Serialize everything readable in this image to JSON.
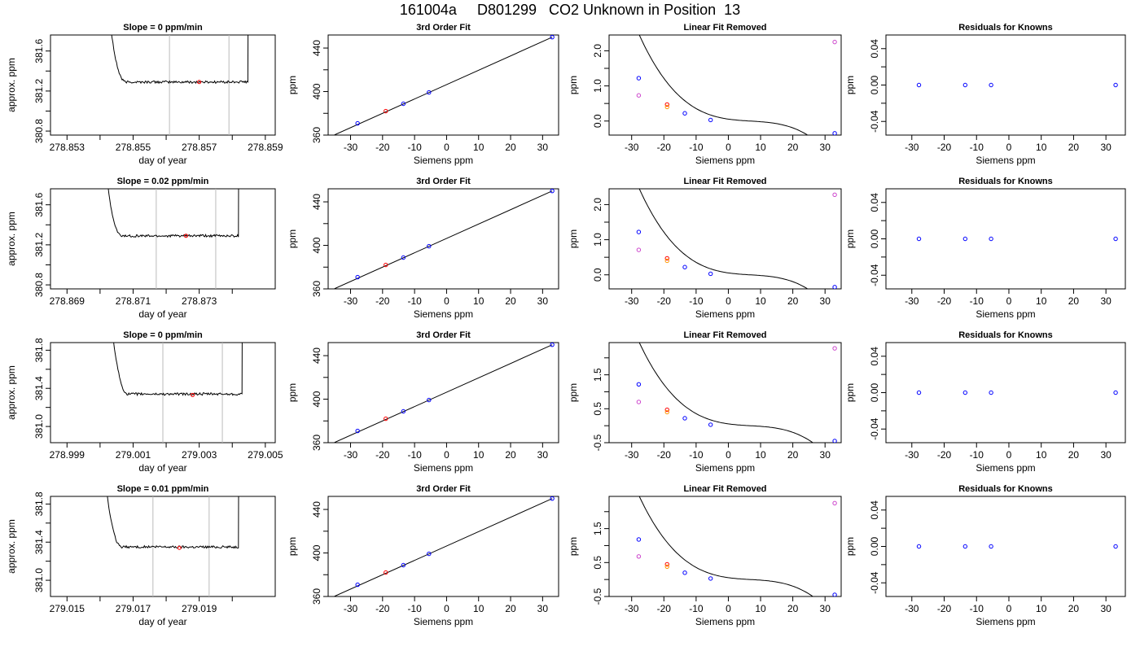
{
  "title": "161004a     D801299   CO2 Unknown in Position  13",
  "chart_data": [
    {
      "type": "line",
      "title": "Slope =  0  ppm/min",
      "xlabel": "day of year",
      "ylabel": "approx. ppm",
      "xlim": [
        278.8525,
        278.8593
      ],
      "ylim": [
        380.76,
        381.76
      ],
      "xticks": [
        278.853,
        278.854,
        278.855,
        278.856,
        278.857,
        278.858,
        278.859
      ],
      "xtick_labels": [
        "278.853",
        "",
        "278.855",
        "",
        "278.857",
        "",
        "278.859"
      ],
      "yticks": [
        380.8,
        381.0,
        381.2,
        381.4,
        381.6
      ],
      "ytick_labels": [
        "380.8",
        "",
        "381.2",
        "",
        "381.6"
      ],
      "vlines": [
        278.8561,
        278.8579
      ],
      "marker": {
        "x": 278.857,
        "y": 381.29,
        "color": "#ff0000"
      },
      "trace": {
        "x_start": 278.8539,
        "x_end": 278.8588,
        "plateau": 381.29,
        "rise_start": 278.8542,
        "rise_end": 278.8585
      }
    },
    {
      "type": "line",
      "title": "3rd Order Fit",
      "xlabel": "Siemens ppm",
      "ylabel": "ppm",
      "xlim": [
        -37,
        35
      ],
      "ylim": [
        360,
        452
      ],
      "xticks": [
        -30,
        -20,
        -10,
        0,
        10,
        20,
        30
      ],
      "xtick_labels": [
        "-30",
        "-20",
        "-10",
        "0",
        "10",
        "20",
        "30"
      ],
      "yticks": [
        360,
        380,
        400,
        420,
        440
      ],
      "ytick_labels": [
        "360",
        "",
        "400",
        "",
        "440"
      ],
      "fit": {
        "a": 406.4,
        "b": 1.32
      },
      "points": [
        {
          "x": -27.8,
          "y": 370.8,
          "color": "#0000ff"
        },
        {
          "x": -19,
          "y": 382.0,
          "color": "#ff0000"
        },
        {
          "x": -13.5,
          "y": 388.8,
          "color": "#0000ff"
        },
        {
          "x": -5.5,
          "y": 399.2,
          "color": "#0000ff"
        },
        {
          "x": 33,
          "y": 450.0,
          "color": "#0000ff"
        }
      ]
    },
    {
      "type": "line",
      "title": "Linear Fit Removed",
      "xlabel": "Siemens ppm",
      "ylabel": "ppm",
      "xlim": [
        -37,
        35
      ],
      "ylim": [
        -0.4,
        2.45
      ],
      "xticks": [
        -30,
        -20,
        -10,
        0,
        10,
        20,
        30
      ],
      "xtick_labels": [
        "-30",
        "-20",
        "-10",
        "0",
        "10",
        "20",
        "30"
      ],
      "yticks": [
        0,
        0.5,
        1,
        1.5,
        2
      ],
      "ytick_labels": [
        "0.0",
        "",
        "1.0",
        "",
        "2.0"
      ],
      "curve": {
        "c": 0.00025,
        "d": 0.008,
        "e": 0.0,
        "f": 0.0
      },
      "points": [
        {
          "x": -27.8,
          "y": 1.22,
          "color": "#0000ff"
        },
        {
          "x": -19,
          "y": 0.47,
          "color": "#ff0000"
        },
        {
          "x": -13.5,
          "y": 0.22,
          "color": "#0000ff"
        },
        {
          "x": -5.5,
          "y": 0.03,
          "color": "#0000ff"
        },
        {
          "x": 33,
          "y": -0.35,
          "color": "#0000ff"
        },
        {
          "x": -27.8,
          "y": 0.73,
          "color": "#cc44cc"
        },
        {
          "x": -19,
          "y": 0.4,
          "color": "#ff9900"
        },
        {
          "x": 33,
          "y": 2.25,
          "color": "#cc44cc"
        }
      ]
    },
    {
      "type": "scatter",
      "title": "Residuals for Knowns",
      "xlabel": "Siemens ppm",
      "ylabel": "ppm",
      "xlim": [
        -38,
        36
      ],
      "ylim": [
        -0.055,
        0.055
      ],
      "xticks": [
        -30,
        -20,
        -10,
        0,
        10,
        20,
        30
      ],
      "xtick_labels": [
        "-30",
        "-20",
        "-10",
        "0",
        "10",
        "20",
        "30"
      ],
      "yticks": [
        -0.04,
        -0.02,
        0,
        0.02,
        0.04
      ],
      "ytick_labels": [
        "-0.04",
        "",
        "0.00",
        "",
        "0.04"
      ],
      "points": [
        {
          "x": -27.8,
          "y": 0,
          "color": "#0000ff"
        },
        {
          "x": -13.5,
          "y": 0,
          "color": "#0000ff"
        },
        {
          "x": -5.5,
          "y": 0,
          "color": "#0000ff"
        },
        {
          "x": 33,
          "y": 0,
          "color": "#0000ff"
        }
      ]
    },
    {
      "type": "line",
      "title": "Slope =  0.02  ppm/min",
      "xlabel": "day of year",
      "ylabel": "approx. ppm",
      "xlim": [
        278.8685,
        278.8753
      ],
      "ylim": [
        380.76,
        381.76
      ],
      "xticks": [
        278.869,
        278.87,
        278.871,
        278.872,
        278.873,
        278.874
      ],
      "xtick_labels": [
        "278.869",
        "",
        "278.871",
        "",
        "278.873",
        ""
      ],
      "yticks": [
        380.8,
        381.0,
        381.2,
        381.4,
        381.6
      ],
      "ytick_labels": [
        "380.8",
        "",
        "381.2",
        "",
        "381.6"
      ],
      "vlines": [
        278.8717,
        278.8735
      ],
      "marker": {
        "x": 278.8726,
        "y": 381.29,
        "color": "#ff0000"
      },
      "trace": {
        "x_start": 278.8698,
        "x_end": 278.8745,
        "plateau": 381.29,
        "rise_start": 278.8701,
        "rise_end": 278.8742
      }
    },
    {
      "type": "line",
      "title": "3rd Order Fit",
      "xlabel": "Siemens ppm",
      "ylabel": "ppm",
      "xlim": [
        -37,
        35
      ],
      "ylim": [
        360,
        452
      ],
      "xticks": [
        -30,
        -20,
        -10,
        0,
        10,
        20,
        30
      ],
      "xtick_labels": [
        "-30",
        "-20",
        "-10",
        "0",
        "10",
        "20",
        "30"
      ],
      "yticks": [
        360,
        380,
        400,
        420,
        440
      ],
      "ytick_labels": [
        "360",
        "",
        "400",
        "",
        "440"
      ],
      "fit": {
        "a": 406.4,
        "b": 1.32
      },
      "points": [
        {
          "x": -27.8,
          "y": 370.8,
          "color": "#0000ff"
        },
        {
          "x": -19,
          "y": 382.0,
          "color": "#ff0000"
        },
        {
          "x": -13.5,
          "y": 388.8,
          "color": "#0000ff"
        },
        {
          "x": -5.5,
          "y": 399.2,
          "color": "#0000ff"
        },
        {
          "x": 33,
          "y": 450.0,
          "color": "#0000ff"
        }
      ]
    },
    {
      "type": "line",
      "title": "Linear Fit Removed",
      "xlabel": "Siemens ppm",
      "ylabel": "ppm",
      "xlim": [
        -37,
        35
      ],
      "ylim": [
        -0.4,
        2.45
      ],
      "xticks": [
        -30,
        -20,
        -10,
        0,
        10,
        20,
        30
      ],
      "xtick_labels": [
        "-30",
        "-20",
        "-10",
        "0",
        "10",
        "20",
        "30"
      ],
      "yticks": [
        0,
        0.5,
        1,
        1.5,
        2
      ],
      "ytick_labels": [
        "0.0",
        "",
        "1.0",
        "",
        "2.0"
      ],
      "curve": {
        "c": 0.00025,
        "d": 0.008,
        "e": 0.0,
        "f": 0.0
      },
      "points": [
        {
          "x": -27.8,
          "y": 1.22,
          "color": "#0000ff"
        },
        {
          "x": -19,
          "y": 0.47,
          "color": "#ff0000"
        },
        {
          "x": -13.5,
          "y": 0.22,
          "color": "#0000ff"
        },
        {
          "x": -5.5,
          "y": 0.03,
          "color": "#0000ff"
        },
        {
          "x": 33,
          "y": -0.35,
          "color": "#0000ff"
        },
        {
          "x": -27.8,
          "y": 0.71,
          "color": "#cc44cc"
        },
        {
          "x": -19,
          "y": 0.4,
          "color": "#ff9900"
        },
        {
          "x": 33,
          "y": 2.28,
          "color": "#cc44cc"
        }
      ]
    },
    {
      "type": "scatter",
      "title": "Residuals for Knowns",
      "xlabel": "Siemens ppm",
      "ylabel": "ppm",
      "xlim": [
        -38,
        36
      ],
      "ylim": [
        -0.055,
        0.055
      ],
      "xticks": [
        -30,
        -20,
        -10,
        0,
        10,
        20,
        30
      ],
      "xtick_labels": [
        "-30",
        "-20",
        "-10",
        "0",
        "10",
        "20",
        "30"
      ],
      "yticks": [
        -0.04,
        -0.02,
        0,
        0.02,
        0.04
      ],
      "ytick_labels": [
        "-0.04",
        "",
        "0.00",
        "",
        "0.04"
      ],
      "points": [
        {
          "x": -27.8,
          "y": 0,
          "color": "#0000ff"
        },
        {
          "x": -13.5,
          "y": 0,
          "color": "#0000ff"
        },
        {
          "x": -5.5,
          "y": 0,
          "color": "#0000ff"
        },
        {
          "x": 33,
          "y": 0,
          "color": "#0000ff"
        }
      ]
    },
    {
      "type": "line",
      "title": "Slope =  0  ppm/min",
      "xlabel": "day of year",
      "ylabel": "approx. ppm",
      "xlim": [
        278.9985,
        279.0053
      ],
      "ylim": [
        380.83,
        381.88
      ],
      "xticks": [
        278.999,
        279.0,
        279.001,
        279.002,
        279.003,
        279.004,
        279.005
      ],
      "xtick_labels": [
        "278.999",
        "",
        "279.001",
        "",
        "279.003",
        "",
        "279.005"
      ],
      "yticks": [
        381.0,
        381.2,
        381.4,
        381.6,
        381.8
      ],
      "ytick_labels": [
        "381.0",
        "",
        "381.4",
        "",
        "381.8"
      ],
      "vlines": [
        279.0019,
        279.0037
      ],
      "marker": {
        "x": 279.0028,
        "y": 381.33,
        "color": "#ff0000"
      },
      "trace": {
        "x_start": 278.9999,
        "x_end": 279.0045,
        "plateau": 381.34,
        "rise_start": 279.0003,
        "rise_end": 279.0043
      }
    },
    {
      "type": "line",
      "title": "3rd Order Fit",
      "xlabel": "Siemens ppm",
      "ylabel": "ppm",
      "xlim": [
        -37,
        35
      ],
      "ylim": [
        360,
        452
      ],
      "xticks": [
        -30,
        -20,
        -10,
        0,
        10,
        20,
        30
      ],
      "xtick_labels": [
        "-30",
        "-20",
        "-10",
        "0",
        "10",
        "20",
        "30"
      ],
      "yticks": [
        360,
        380,
        400,
        420,
        440
      ],
      "ytick_labels": [
        "360",
        "",
        "400",
        "",
        "440"
      ],
      "fit": {
        "a": 406.4,
        "b": 1.32
      },
      "points": [
        {
          "x": -27.8,
          "y": 370.8,
          "color": "#0000ff"
        },
        {
          "x": -19,
          "y": 382.0,
          "color": "#ff0000"
        },
        {
          "x": -13.5,
          "y": 388.8,
          "color": "#0000ff"
        },
        {
          "x": -5.5,
          "y": 399.2,
          "color": "#0000ff"
        },
        {
          "x": 33,
          "y": 450.0,
          "color": "#0000ff"
        }
      ]
    },
    {
      "type": "line",
      "title": "Linear Fit Removed",
      "xlabel": "Siemens ppm",
      "ylabel": "ppm",
      "xlim": [
        -37,
        35
      ],
      "ylim": [
        -0.5,
        2.45
      ],
      "xticks": [
        -30,
        -20,
        -10,
        0,
        10,
        20,
        30
      ],
      "xtick_labels": [
        "-30",
        "-20",
        "-10",
        "0",
        "10",
        "20",
        "30"
      ],
      "yticks": [
        -0.5,
        0,
        0.5,
        1,
        1.5,
        2
      ],
      "ytick_labels": [
        "-0.5",
        "",
        "0.5",
        "",
        "1.5",
        ""
      ],
      "curve": {
        "c": 0.00025,
        "d": 0.008,
        "e": 0.0,
        "f": 0.0
      },
      "points": [
        {
          "x": -27.8,
          "y": 1.22,
          "color": "#0000ff"
        },
        {
          "x": -19,
          "y": 0.47,
          "color": "#ff0000"
        },
        {
          "x": -13.5,
          "y": 0.22,
          "color": "#0000ff"
        },
        {
          "x": -5.5,
          "y": 0.03,
          "color": "#0000ff"
        },
        {
          "x": 33,
          "y": -0.45,
          "color": "#0000ff"
        },
        {
          "x": -27.8,
          "y": 0.7,
          "color": "#cc44cc"
        },
        {
          "x": -19,
          "y": 0.4,
          "color": "#ff9900"
        },
        {
          "x": 33,
          "y": 2.28,
          "color": "#cc44cc"
        }
      ]
    },
    {
      "type": "scatter",
      "title": "Residuals for Knowns",
      "xlabel": "Siemens ppm",
      "ylabel": "ppm",
      "xlim": [
        -38,
        36
      ],
      "ylim": [
        -0.055,
        0.055
      ],
      "xticks": [
        -30,
        -20,
        -10,
        0,
        10,
        20,
        30
      ],
      "xtick_labels": [
        "-30",
        "-20",
        "-10",
        "0",
        "10",
        "20",
        "30"
      ],
      "yticks": [
        -0.04,
        -0.02,
        0,
        0.02,
        0.04
      ],
      "ytick_labels": [
        "-0.04",
        "",
        "0.00",
        "",
        "0.04"
      ],
      "points": [
        {
          "x": -27.8,
          "y": 0,
          "color": "#0000ff"
        },
        {
          "x": -13.5,
          "y": 0,
          "color": "#0000ff"
        },
        {
          "x": -5.5,
          "y": 0,
          "color": "#0000ff"
        },
        {
          "x": 33,
          "y": 0,
          "color": "#0000ff"
        }
      ]
    },
    {
      "type": "line",
      "title": "Slope =  0.01  ppm/min",
      "xlabel": "day of year",
      "ylabel": "approx. ppm",
      "xlim": [
        279.0145,
        279.0213
      ],
      "ylim": [
        380.83,
        381.88
      ],
      "xticks": [
        279.015,
        279.016,
        279.017,
        279.018,
        279.019,
        279.02
      ],
      "xtick_labels": [
        "279.015",
        "",
        "279.017",
        "",
        "279.019",
        ""
      ],
      "yticks": [
        381.0,
        381.2,
        381.4,
        381.6,
        381.8
      ],
      "ytick_labels": [
        "381.0",
        "",
        "381.4",
        "",
        "381.8"
      ],
      "vlines": [
        279.0176,
        279.0193
      ],
      "marker": {
        "x": 279.0184,
        "y": 381.34,
        "color": "#ff0000"
      },
      "trace": {
        "x_start": 279.0158,
        "x_end": 279.0205,
        "plateau": 381.35,
        "rise_start": 279.0161,
        "rise_end": 279.0202
      }
    },
    {
      "type": "line",
      "title": "3rd Order Fit",
      "xlabel": "Siemens ppm",
      "ylabel": "ppm",
      "xlim": [
        -37,
        35
      ],
      "ylim": [
        360,
        452
      ],
      "xticks": [
        -30,
        -20,
        -10,
        0,
        10,
        20,
        30
      ],
      "xtick_labels": [
        "-30",
        "-20",
        "-10",
        "0",
        "10",
        "20",
        "30"
      ],
      "yticks": [
        360,
        380,
        400,
        420,
        440
      ],
      "ytick_labels": [
        "360",
        "",
        "400",
        "",
        "440"
      ],
      "fit": {
        "a": 406.4,
        "b": 1.32
      },
      "points": [
        {
          "x": -27.8,
          "y": 370.8,
          "color": "#0000ff"
        },
        {
          "x": -19,
          "y": 382.0,
          "color": "#ff0000"
        },
        {
          "x": -13.5,
          "y": 388.8,
          "color": "#0000ff"
        },
        {
          "x": -5.5,
          "y": 399.2,
          "color": "#0000ff"
        },
        {
          "x": 33,
          "y": 450.0,
          "color": "#0000ff"
        }
      ]
    },
    {
      "type": "line",
      "title": "Linear Fit Removed",
      "xlabel": "Siemens ppm",
      "ylabel": "ppm",
      "xlim": [
        -37,
        35
      ],
      "ylim": [
        -0.5,
        2.45
      ],
      "xticks": [
        -30,
        -20,
        -10,
        0,
        10,
        20,
        30
      ],
      "xtick_labels": [
        "-30",
        "-20",
        "-10",
        "0",
        "10",
        "20",
        "30"
      ],
      "yticks": [
        -0.5,
        0,
        0.5,
        1,
        1.5,
        2
      ],
      "ytick_labels": [
        "-0.5",
        "",
        "0.5",
        "",
        "1.5",
        ""
      ],
      "curve": {
        "c": 0.00025,
        "d": 0.008,
        "e": 0.0,
        "f": 0.0
      },
      "points": [
        {
          "x": -27.8,
          "y": 1.18,
          "color": "#0000ff"
        },
        {
          "x": -19,
          "y": 0.45,
          "color": "#ff0000"
        },
        {
          "x": -13.5,
          "y": 0.2,
          "color": "#0000ff"
        },
        {
          "x": -5.5,
          "y": 0.03,
          "color": "#0000ff"
        },
        {
          "x": 33,
          "y": -0.45,
          "color": "#0000ff"
        },
        {
          "x": -27.8,
          "y": 0.68,
          "color": "#cc44cc"
        },
        {
          "x": -19,
          "y": 0.38,
          "color": "#ff9900"
        },
        {
          "x": 33,
          "y": 2.25,
          "color": "#cc44cc"
        }
      ]
    },
    {
      "type": "scatter",
      "title": "Residuals for Knowns",
      "xlabel": "Siemens ppm",
      "ylabel": "ppm",
      "xlim": [
        -38,
        36
      ],
      "ylim": [
        -0.055,
        0.055
      ],
      "xticks": [
        -30,
        -20,
        -10,
        0,
        10,
        20,
        30
      ],
      "xtick_labels": [
        "-30",
        "-20",
        "-10",
        "0",
        "10",
        "20",
        "30"
      ],
      "yticks": [
        -0.04,
        -0.02,
        0,
        0.02,
        0.04
      ],
      "ytick_labels": [
        "-0.04",
        "",
        "0.00",
        "",
        "0.04"
      ],
      "points": [
        {
          "x": -27.8,
          "y": 0,
          "color": "#0000ff"
        },
        {
          "x": -13.5,
          "y": 0,
          "color": "#0000ff"
        },
        {
          "x": -5.5,
          "y": 0,
          "color": "#0000ff"
        },
        {
          "x": 33,
          "y": 0,
          "color": "#0000ff"
        }
      ]
    }
  ]
}
